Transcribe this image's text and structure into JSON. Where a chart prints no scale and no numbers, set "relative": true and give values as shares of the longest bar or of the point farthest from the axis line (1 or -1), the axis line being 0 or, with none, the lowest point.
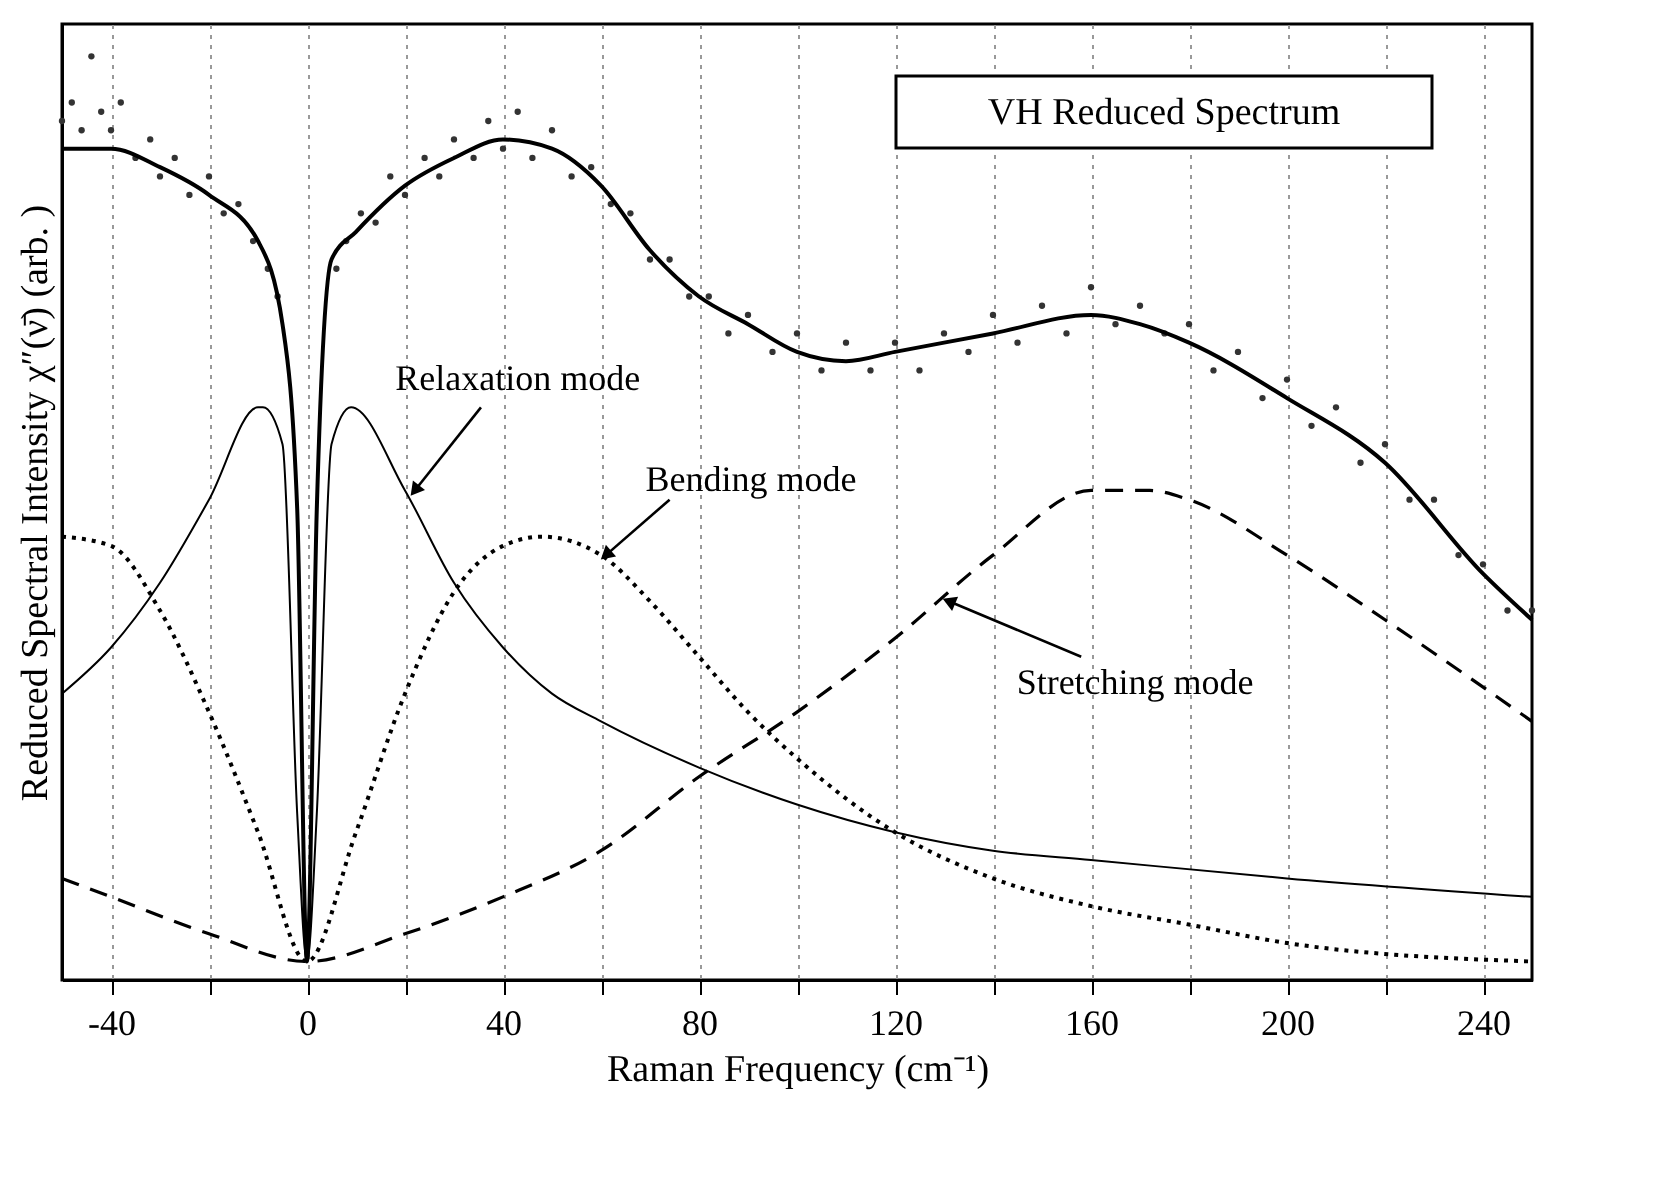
{
  "chart_data": {
    "type": "line",
    "relative": true,
    "xlabel": "Raman Frequency  (cm⁻¹)",
    "ylabel": "Reduced Spectral Intensity  χ″(ν̄)  (arb. )",
    "xlim": [
      -50,
      250
    ],
    "xticks": [
      -40,
      {
        "value": -20,
        "label": null
      },
      0,
      {
        "value": 20,
        "label": null
      },
      40,
      {
        "value": 60,
        "label": null
      },
      80,
      {
        "value": 100,
        "label": null
      },
      120,
      {
        "value": 140,
        "label": null
      },
      160,
      {
        "value": 180,
        "label": null
      },
      200,
      {
        "value": 220,
        "label": null
      },
      240
    ],
    "grid": "x",
    "annotations": [
      "VH Reduced Spectrum",
      {
        "text": "Relaxation mode",
        "x": 22,
        "y": 0.53
      },
      {
        "text": "Bending mode",
        "x": 61,
        "y": 0.46
      },
      {
        "text": "Stretching mode",
        "x": 131,
        "y": 0.41
      }
    ],
    "series": [
      {
        "type": "scatter",
        "marker": "circle",
        "color": "#333333",
        "x": [
          -50,
          -48,
          -46,
          -44,
          -42,
          -40,
          -38,
          -35,
          -32,
          -30,
          -27,
          -24,
          -20,
          -17,
          -14,
          -11,
          -8,
          -6,
          6,
          8,
          11,
          14,
          17,
          20,
          24,
          27,
          30,
          34,
          37,
          40,
          43,
          46,
          50,
          54,
          58,
          62,
          66,
          70,
          74,
          78,
          82,
          86,
          90,
          95,
          100,
          105,
          110,
          115,
          120,
          125,
          130,
          135,
          140,
          145,
          150,
          155,
          160,
          165,
          170,
          175,
          180,
          185,
          190,
          195,
          200,
          205,
          210,
          215,
          220,
          225,
          230,
          235,
          240,
          245,
          250
        ],
        "values": [
          0.93,
          0.95,
          0.92,
          1.0,
          0.94,
          0.92,
          0.95,
          0.89,
          0.91,
          0.87,
          0.89,
          0.85,
          0.87,
          0.83,
          0.84,
          0.8,
          0.77,
          0.74,
          0.77,
          0.8,
          0.83,
          0.82,
          0.87,
          0.85,
          0.89,
          0.87,
          0.91,
          0.89,
          0.93,
          0.9,
          0.94,
          0.89,
          0.92,
          0.87,
          0.88,
          0.84,
          0.83,
          0.78,
          0.78,
          0.74,
          0.74,
          0.7,
          0.72,
          0.68,
          0.7,
          0.66,
          0.69,
          0.66,
          0.69,
          0.66,
          0.7,
          0.68,
          0.72,
          0.69,
          0.73,
          0.7,
          0.75,
          0.71,
          0.73,
          0.7,
          0.71,
          0.66,
          0.68,
          0.63,
          0.65,
          0.6,
          0.62,
          0.56,
          0.58,
          0.52,
          0.52,
          0.46,
          0.45,
          0.4,
          0.4
        ]
      },
      {
        "line_style": "solid",
        "color": "#000000",
        "x": [
          -50,
          -45,
          -40,
          -30,
          -20,
          -10,
          -5,
          -2,
          0,
          2,
          5,
          10,
          20,
          30,
          40,
          50,
          60,
          70,
          80,
          90,
          100,
          110,
          120,
          140,
          160,
          170,
          180,
          200,
          220,
          240,
          250
        ],
        "values": [
          0.9,
          0.9,
          0.9,
          0.88,
          0.85,
          0.8,
          0.71,
          0.51,
          0.02,
          0.51,
          0.78,
          0.81,
          0.86,
          0.89,
          0.91,
          0.9,
          0.86,
          0.79,
          0.74,
          0.71,
          0.68,
          0.67,
          0.68,
          0.7,
          0.72,
          0.71,
          0.69,
          0.63,
          0.56,
          0.44,
          0.39
        ]
      },
      {
        "line_style": "solid",
        "color": "#000000",
        "x": [
          -50,
          -40,
          -30,
          -20,
          -10,
          -9,
          -5,
          -2,
          0,
          2,
          5,
          9,
          20,
          30,
          40,
          50,
          60,
          80,
          100,
          120,
          140,
          160,
          200,
          250
        ],
        "values": [
          0.31,
          0.36,
          0.43,
          0.52,
          0.62,
          0.62,
          0.58,
          0.18,
          0.02,
          0.18,
          0.58,
          0.62,
          0.53,
          0.43,
          0.36,
          0.31,
          0.28,
          0.23,
          0.19,
          0.16,
          0.14,
          0.13,
          0.11,
          0.09
        ]
      },
      {
        "line_style": "dotted",
        "color": "#000000",
        "x": [
          -50,
          -40,
          -30,
          -20,
          -10,
          0,
          10,
          20,
          30,
          40,
          48,
          60,
          70,
          80,
          90,
          100,
          120,
          140,
          160,
          180,
          200,
          250
        ],
        "values": [
          0.48,
          0.47,
          0.4,
          0.29,
          0.16,
          0.02,
          0.16,
          0.31,
          0.42,
          0.47,
          0.48,
          0.46,
          0.41,
          0.35,
          0.29,
          0.24,
          0.16,
          0.11,
          0.08,
          0.06,
          0.04,
          0.02
        ]
      },
      {
        "line_style": "dashed",
        "color": "#000000",
        "x": [
          -50,
          -40,
          -20,
          0,
          20,
          40,
          60,
          80,
          100,
          120,
          140,
          160,
          172,
          180,
          200,
          220,
          250
        ],
        "values": [
          0.11,
          0.09,
          0.05,
          0.02,
          0.05,
          0.09,
          0.14,
          0.22,
          0.29,
          0.37,
          0.46,
          0.53,
          0.53,
          0.52,
          0.46,
          0.39,
          0.28
        ]
      }
    ]
  }
}
